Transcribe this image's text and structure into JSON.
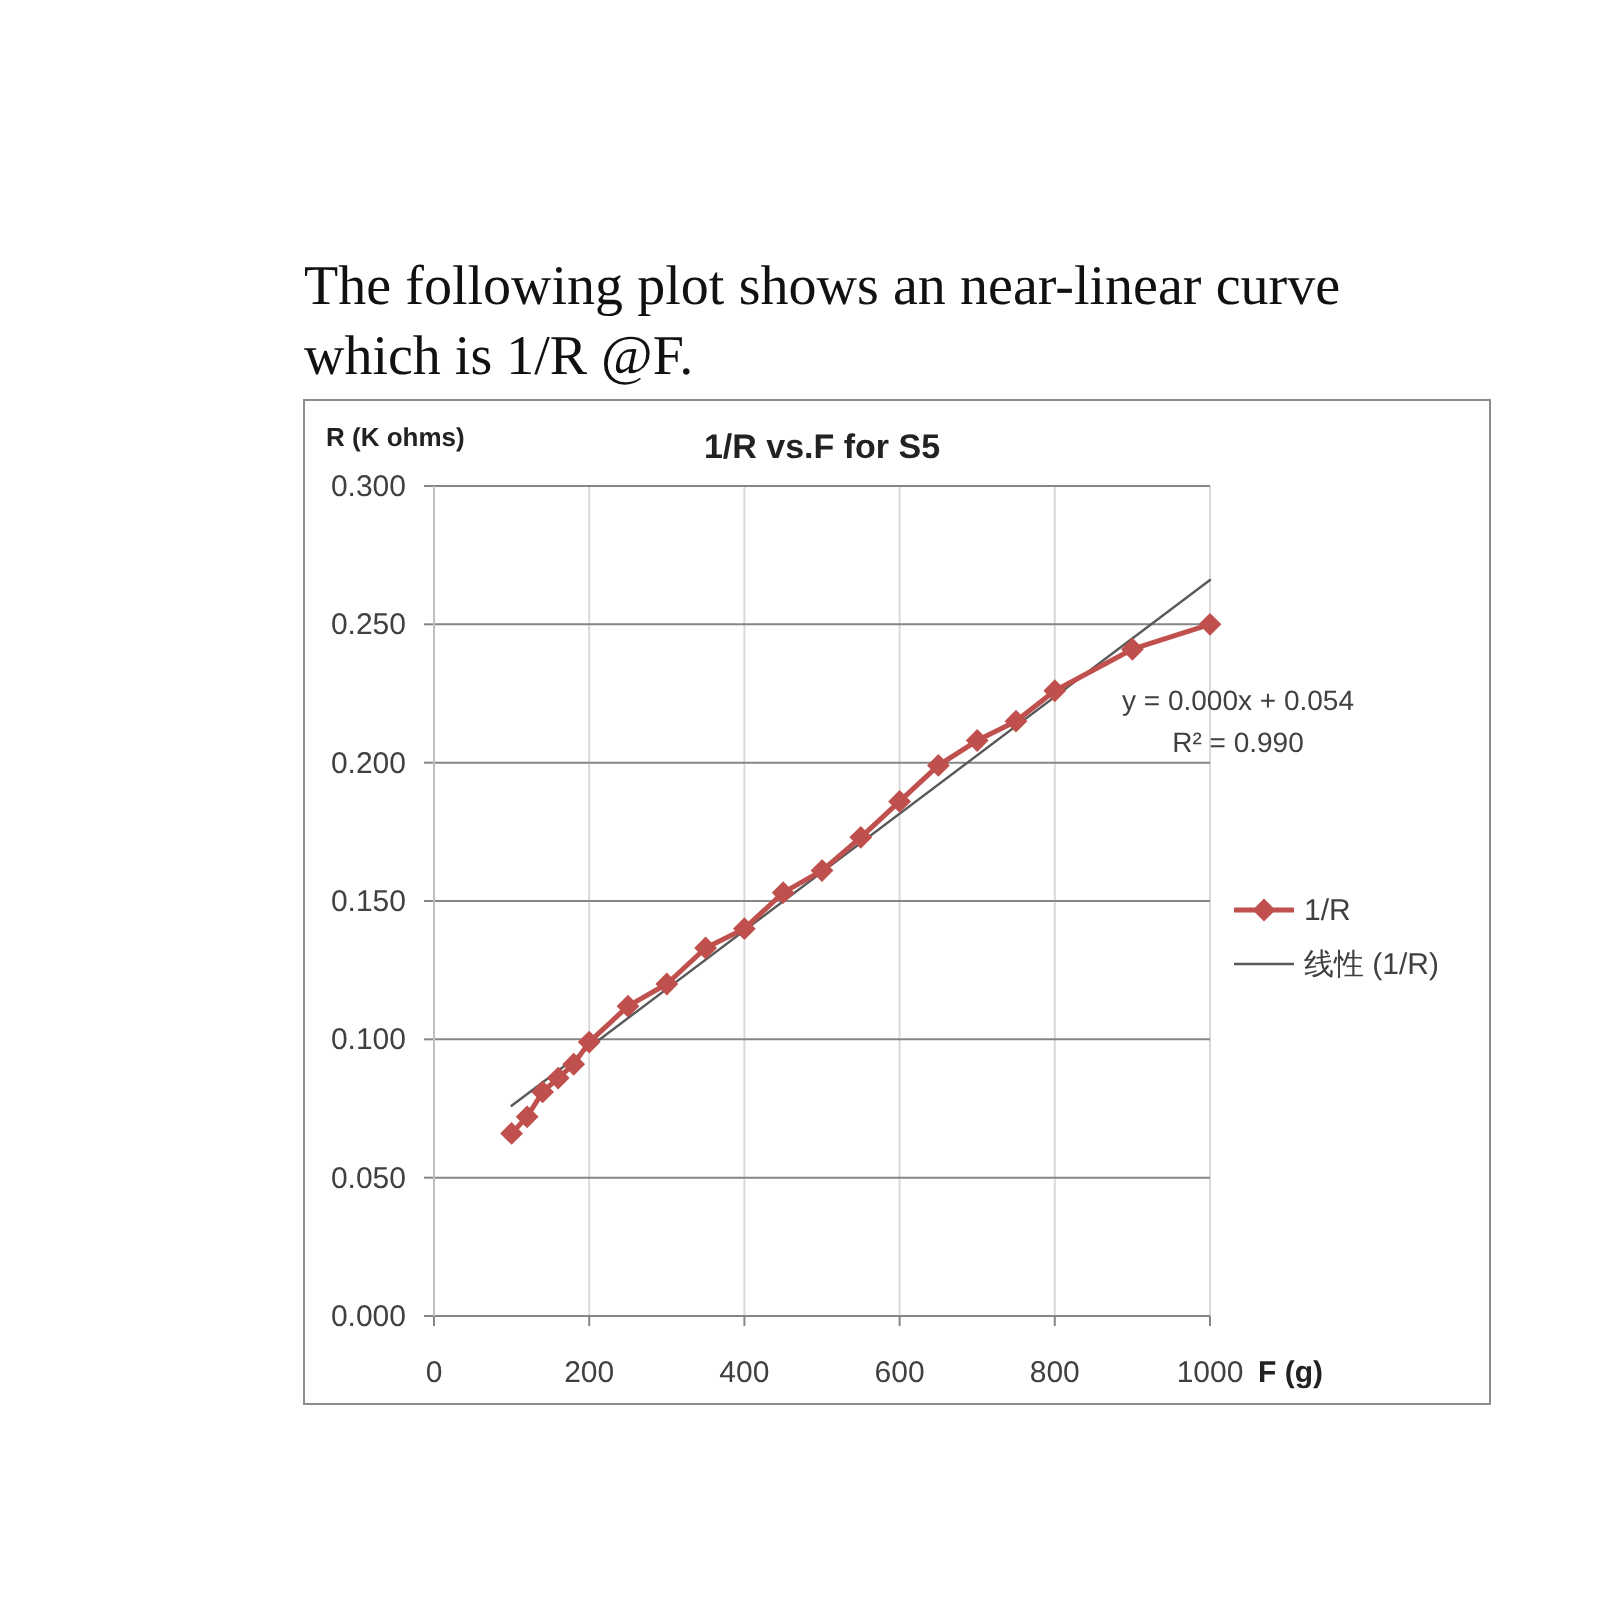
{
  "chart_data": {
    "type": "line",
    "title": "1/R vs.F for S5",
    "subtitle": "The following plot shows an near-linear curve which is 1/R @F.",
    "xlabel": "F (g)",
    "ylabel": "R (K ohms)",
    "series": [
      {
        "name": "1/R",
        "color": "#c0504d",
        "x": [
          100,
          120,
          140,
          160,
          180,
          200,
          250,
          300,
          350,
          400,
          450,
          500,
          550,
          600,
          650,
          700,
          750,
          800,
          900,
          1000
        ],
        "values": [
          0.066,
          0.072,
          0.081,
          0.086,
          0.091,
          0.099,
          0.112,
          0.12,
          0.133,
          0.14,
          0.153,
          0.161,
          0.173,
          0.186,
          0.199,
          0.208,
          0.215,
          0.226,
          0.241,
          0.25
        ]
      },
      {
        "name": "线性 (1/R)",
        "type": "line",
        "color": "#595959",
        "marker": "none",
        "x": [
          100,
          1000
        ],
        "values": [
          0.076,
          0.266
        ]
      }
    ],
    "xlim": [
      0,
      1000
    ],
    "xticks": [
      0,
      200,
      400,
      600,
      800,
      1000
    ],
    "ylim": [
      0,
      0.3
    ],
    "yticks": [
      {
        "value": 0,
        "label": "0.000"
      },
      {
        "value": 0.05,
        "label": "0.050"
      },
      {
        "value": 0.1,
        "label": "0.100"
      },
      {
        "value": 0.15,
        "label": "0.150"
      },
      {
        "value": 0.2,
        "label": "0.200"
      },
      {
        "value": 0.25,
        "label": "0.250"
      },
      {
        "value": 0.3,
        "label": "0.300"
      }
    ],
    "grid": true,
    "legend": "right",
    "marker": "diamond",
    "line_style": "solid",
    "annotations": [
      "y = 0.000x + 0.054",
      "R² = 0.990"
    ]
  }
}
